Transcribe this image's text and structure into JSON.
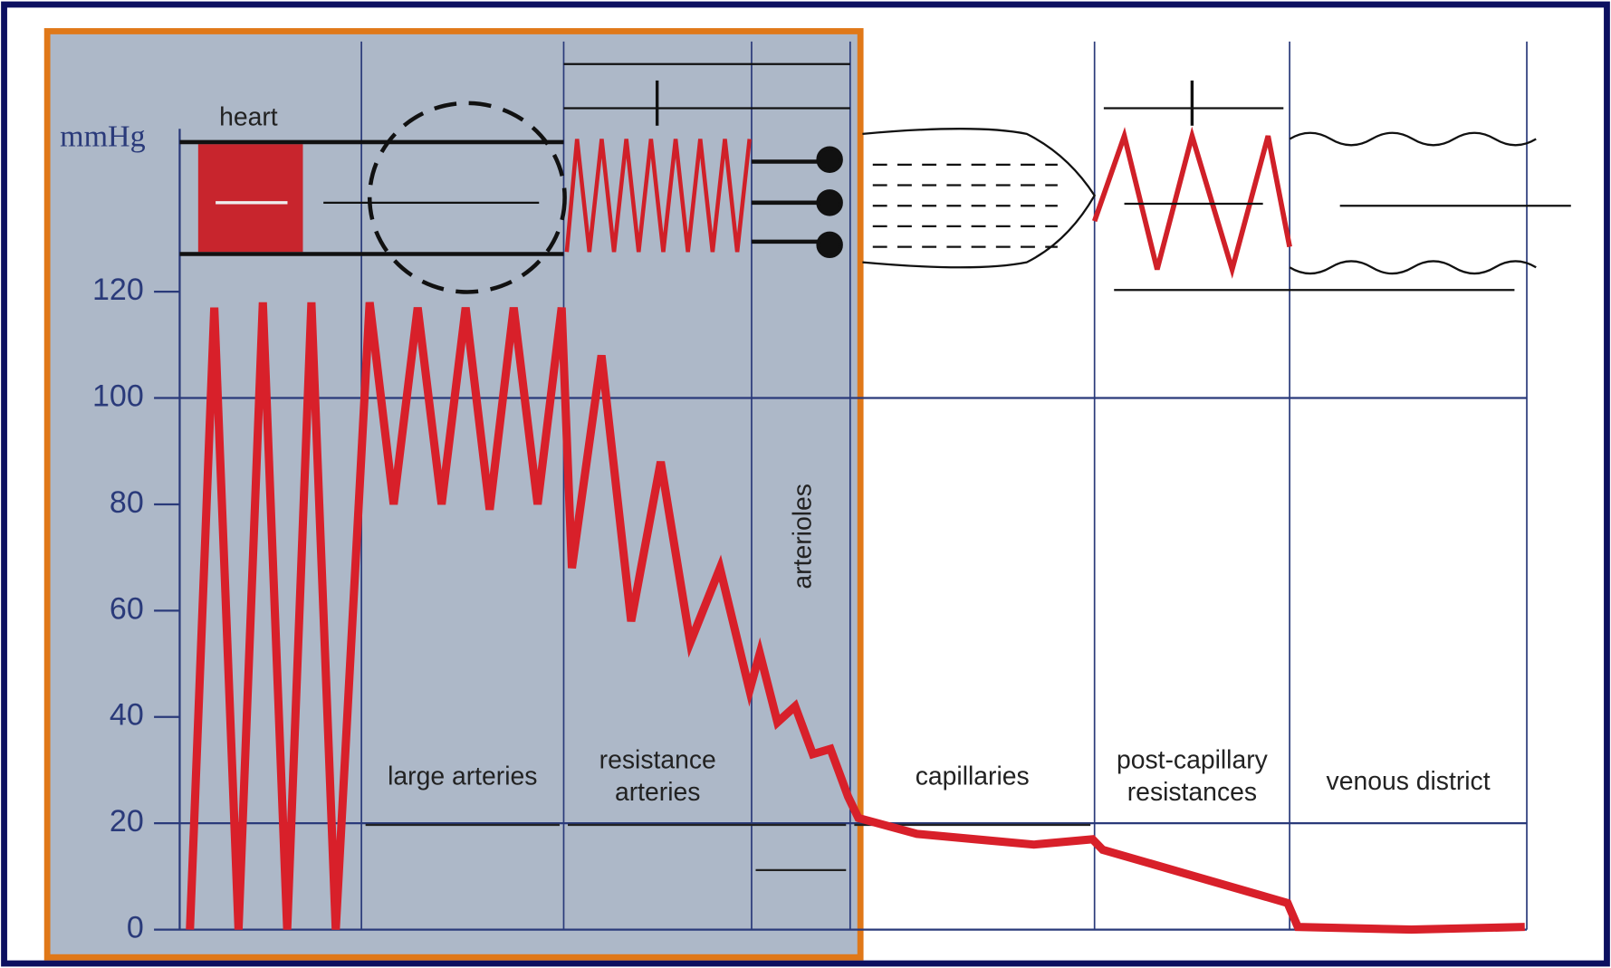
{
  "y_axis": {
    "unit": "mmHg",
    "ylim": [
      0,
      169
    ],
    "ticks": [
      0,
      20,
      40,
      60,
      80,
      100,
      120
    ]
  },
  "segments": [
    {
      "label": [
        "heart"
      ],
      "pressure": [
        0,
        117,
        0,
        118,
        0,
        118,
        0
      ]
    },
    {
      "label": [
        "large arteries"
      ],
      "pressure": [
        118,
        80,
        117,
        80,
        117,
        79,
        117,
        80,
        117
      ]
    },
    {
      "label": [
        "resistance",
        "arteries"
      ],
      "pressure": [
        68,
        108,
        58,
        88,
        54,
        68,
        45
      ]
    },
    {
      "label": [
        "arterioles"
      ],
      "pressure": [
        52,
        39,
        42,
        33,
        34,
        25
      ]
    },
    {
      "label": [
        "capillaries"
      ],
      "pressure": [
        21,
        18,
        17,
        16,
        17
      ]
    },
    {
      "label": [
        "post-capillary",
        "resistances"
      ],
      "pressure": [
        15,
        10,
        5
      ]
    },
    {
      "label": [
        "venous district"
      ],
      "pressure": [
        0.5,
        0,
        0.5
      ]
    }
  ]
}
